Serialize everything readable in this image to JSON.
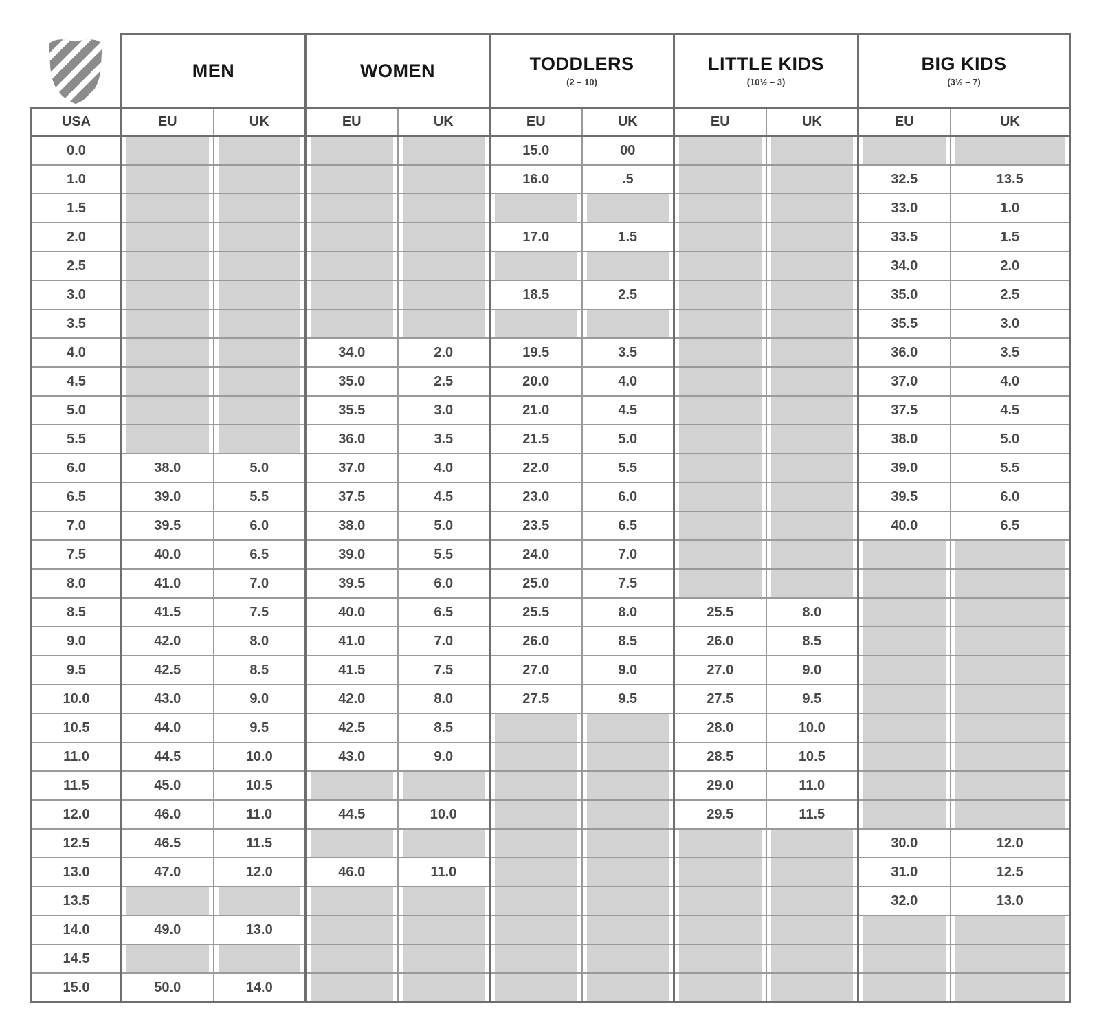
{
  "brand": {
    "logo_icon": "k-swiss-shield-icon"
  },
  "colors": {
    "empty_cell": "#d2d2d2",
    "grid": "#9a9a9a",
    "grid_strong": "#6e6e6e",
    "cell_text": "#474747",
    "header_text": "#151515",
    "logo_gray": "#8b8b8b"
  },
  "table": {
    "corner_label": "USA",
    "groups": [
      {
        "label": "MEN",
        "sub": ""
      },
      {
        "label": "WOMEN",
        "sub": ""
      },
      {
        "label": "TODDLERS",
        "sub": "(2 – 10)"
      },
      {
        "label": "LITTLE KIDS",
        "sub": "(10½ – 3)"
      },
      {
        "label": "BIG KIDS",
        "sub": "(3½ – 7)"
      }
    ],
    "subheaders": [
      "EU",
      "UK"
    ]
  },
  "chart_data": {
    "type": "table",
    "columns": [
      "USA",
      "MEN EU",
      "MEN UK",
      "WOMEN EU",
      "WOMEN UK",
      "TODDLERS EU",
      "TODDLERS UK",
      "LITTLE KIDS EU",
      "LITTLE KIDS UK",
      "BIG KIDS EU",
      "BIG KIDS UK"
    ],
    "rows": [
      [
        "0.0",
        null,
        null,
        null,
        null,
        "15.0",
        "00",
        null,
        null,
        null,
        null
      ],
      [
        "1.0",
        null,
        null,
        null,
        null,
        "16.0",
        ".5",
        null,
        null,
        "32.5",
        "13.5"
      ],
      [
        "1.5",
        null,
        null,
        null,
        null,
        null,
        null,
        null,
        null,
        "33.0",
        "1.0"
      ],
      [
        "2.0",
        null,
        null,
        null,
        null,
        "17.0",
        "1.5",
        null,
        null,
        "33.5",
        "1.5"
      ],
      [
        "2.5",
        null,
        null,
        null,
        null,
        null,
        null,
        null,
        null,
        "34.0",
        "2.0"
      ],
      [
        "3.0",
        null,
        null,
        null,
        null,
        "18.5",
        "2.5",
        null,
        null,
        "35.0",
        "2.5"
      ],
      [
        "3.5",
        null,
        null,
        null,
        null,
        null,
        null,
        null,
        null,
        "35.5",
        "3.0"
      ],
      [
        "4.0",
        null,
        null,
        "34.0",
        "2.0",
        "19.5",
        "3.5",
        null,
        null,
        "36.0",
        "3.5"
      ],
      [
        "4.5",
        null,
        null,
        "35.0",
        "2.5",
        "20.0",
        "4.0",
        null,
        null,
        "37.0",
        "4.0"
      ],
      [
        "5.0",
        null,
        null,
        "35.5",
        "3.0",
        "21.0",
        "4.5",
        null,
        null,
        "37.5",
        "4.5"
      ],
      [
        "5.5",
        null,
        null,
        "36.0",
        "3.5",
        "21.5",
        "5.0",
        null,
        null,
        "38.0",
        "5.0"
      ],
      [
        "6.0",
        "38.0",
        "5.0",
        "37.0",
        "4.0",
        "22.0",
        "5.5",
        null,
        null,
        "39.0",
        "5.5"
      ],
      [
        "6.5",
        "39.0",
        "5.5",
        "37.5",
        "4.5",
        "23.0",
        "6.0",
        null,
        null,
        "39.5",
        "6.0"
      ],
      [
        "7.0",
        "39.5",
        "6.0",
        "38.0",
        "5.0",
        "23.5",
        "6.5",
        null,
        null,
        "40.0",
        "6.5"
      ],
      [
        "7.5",
        "40.0",
        "6.5",
        "39.0",
        "5.5",
        "24.0",
        "7.0",
        null,
        null,
        null,
        null
      ],
      [
        "8.0",
        "41.0",
        "7.0",
        "39.5",
        "6.0",
        "25.0",
        "7.5",
        null,
        null,
        null,
        null
      ],
      [
        "8.5",
        "41.5",
        "7.5",
        "40.0",
        "6.5",
        "25.5",
        "8.0",
        "25.5",
        "8.0",
        null,
        null
      ],
      [
        "9.0",
        "42.0",
        "8.0",
        "41.0",
        "7.0",
        "26.0",
        "8.5",
        "26.0",
        "8.5",
        null,
        null
      ],
      [
        "9.5",
        "42.5",
        "8.5",
        "41.5",
        "7.5",
        "27.0",
        "9.0",
        "27.0",
        "9.0",
        null,
        null
      ],
      [
        "10.0",
        "43.0",
        "9.0",
        "42.0",
        "8.0",
        "27.5",
        "9.5",
        "27.5",
        "9.5",
        null,
        null
      ],
      [
        "10.5",
        "44.0",
        "9.5",
        "42.5",
        "8.5",
        null,
        null,
        "28.0",
        "10.0",
        null,
        null
      ],
      [
        "11.0",
        "44.5",
        "10.0",
        "43.0",
        "9.0",
        null,
        null,
        "28.5",
        "10.5",
        null,
        null
      ],
      [
        "11.5",
        "45.0",
        "10.5",
        null,
        null,
        null,
        null,
        "29.0",
        "11.0",
        null,
        null
      ],
      [
        "12.0",
        "46.0",
        "11.0",
        "44.5",
        "10.0",
        null,
        null,
        "29.5",
        "11.5",
        null,
        null
      ],
      [
        "12.5",
        "46.5",
        "11.5",
        null,
        null,
        null,
        null,
        null,
        null,
        "30.0",
        "12.0"
      ],
      [
        "13.0",
        "47.0",
        "12.0",
        "46.0",
        "11.0",
        null,
        null,
        null,
        null,
        "31.0",
        "12.5"
      ],
      [
        "13.5",
        null,
        null,
        null,
        null,
        null,
        null,
        null,
        null,
        "32.0",
        "13.0"
      ],
      [
        "14.0",
        "49.0",
        "13.0",
        null,
        null,
        null,
        null,
        null,
        null,
        null,
        null
      ],
      [
        "14.5",
        null,
        null,
        null,
        null,
        null,
        null,
        null,
        null,
        null,
        null
      ],
      [
        "15.0",
        "50.0",
        "14.0",
        null,
        null,
        null,
        null,
        null,
        null,
        null,
        null
      ]
    ]
  }
}
